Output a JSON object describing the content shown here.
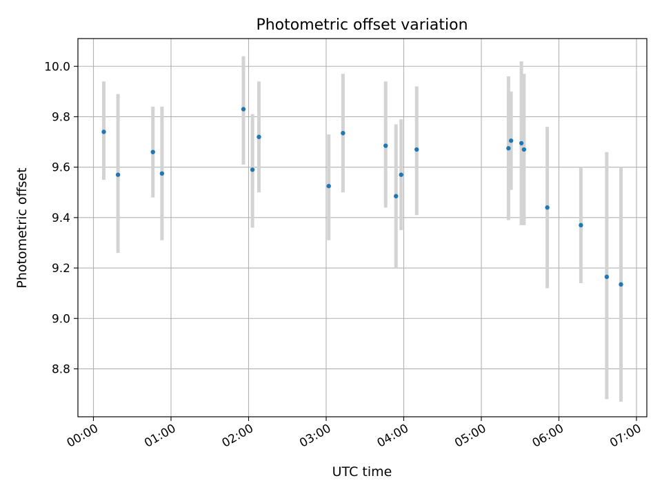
{
  "chart_data": {
    "type": "scatter",
    "title": "Photometric offset variation",
    "xlabel": "UTC time",
    "ylabel": "Photometric offset",
    "x_unit": "UTC hours",
    "xlim": [
      "23:48",
      "07:08"
    ],
    "ylim": [
      8.61,
      10.11
    ],
    "grid": true,
    "x_ticks": [
      "00:00",
      "01:00",
      "02:00",
      "03:00",
      "04:00",
      "05:00",
      "06:00",
      "07:00"
    ],
    "y_ticks": [
      "8.8",
      "9.0",
      "9.2",
      "9.4",
      "9.6",
      "9.8",
      "10.0"
    ],
    "series": [
      {
        "marker": "point",
        "error_bars": "vertical",
        "points": [
          {
            "time": "00:08",
            "y": 9.74,
            "lo": 9.55,
            "hi": 9.94
          },
          {
            "time": "00:19",
            "y": 9.57,
            "lo": 9.26,
            "hi": 9.89
          },
          {
            "time": "00:46",
            "y": 9.66,
            "lo": 9.48,
            "hi": 9.84
          },
          {
            "time": "00:53",
            "y": 9.575,
            "lo": 9.31,
            "hi": 9.84
          },
          {
            "time": "01:56",
            "y": 9.83,
            "lo": 9.61,
            "hi": 10.04
          },
          {
            "time": "02:03",
            "y": 9.59,
            "lo": 9.36,
            "hi": 9.81
          },
          {
            "time": "02:08",
            "y": 9.72,
            "lo": 9.5,
            "hi": 9.94
          },
          {
            "time": "03:02",
            "y": 9.525,
            "lo": 9.31,
            "hi": 9.73
          },
          {
            "time": "03:13",
            "y": 9.735,
            "lo": 9.5,
            "hi": 9.97
          },
          {
            "time": "03:46",
            "y": 9.685,
            "lo": 9.44,
            "hi": 9.94
          },
          {
            "time": "03:54",
            "y": 9.485,
            "lo": 9.2,
            "hi": 9.77
          },
          {
            "time": "03:58",
            "y": 9.57,
            "lo": 9.35,
            "hi": 9.79
          },
          {
            "time": "04:10",
            "y": 9.67,
            "lo": 9.41,
            "hi": 9.92
          },
          {
            "time": "05:21",
            "y": 9.675,
            "lo": 9.39,
            "hi": 9.96
          },
          {
            "time": "05:23",
            "y": 9.705,
            "lo": 9.51,
            "hi": 9.9
          },
          {
            "time": "05:31",
            "y": 9.695,
            "lo": 9.37,
            "hi": 10.02
          },
          {
            "time": "05:33",
            "y": 9.67,
            "lo": 9.37,
            "hi": 9.97
          },
          {
            "time": "05:51",
            "y": 9.44,
            "lo": 9.12,
            "hi": 9.76
          },
          {
            "time": "06:17",
            "y": 9.37,
            "lo": 9.14,
            "hi": 9.6
          },
          {
            "time": "06:37",
            "y": 9.165,
            "lo": 8.68,
            "hi": 9.66
          },
          {
            "time": "06:48",
            "y": 9.135,
            "lo": 8.67,
            "hi": 9.6
          }
        ]
      }
    ],
    "colors": {
      "marker": "#1f77b4",
      "errorbar": "#d3d3d3",
      "grid": "#b0b0b0",
      "axes": "#000000"
    }
  }
}
